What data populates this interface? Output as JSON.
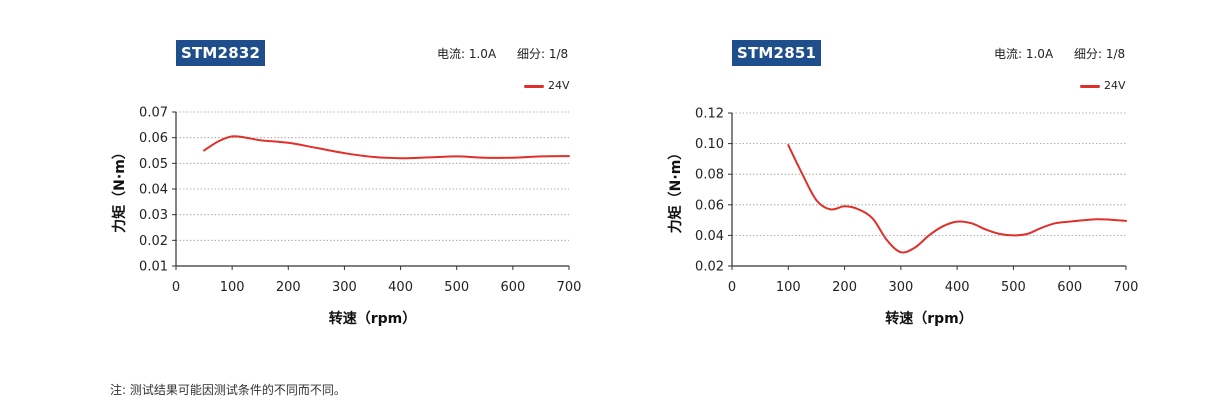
{
  "chart_data": [
    {
      "type": "line",
      "title": "STM2832",
      "spec": {
        "current": "电流: 1.0A",
        "microstep": "细分: 1/8"
      },
      "xlabel": "转速（rpm）",
      "ylabel": "力矩（N·m）",
      "xlim": [
        0,
        700
      ],
      "ylim": [
        0.01,
        0.07
      ],
      "xticks": [
        0,
        100,
        200,
        300,
        400,
        500,
        600,
        700
      ],
      "yticks": [
        "0.01",
        "0.02",
        "0.03",
        "0.04",
        "0.05",
        "0.06",
        "0.07"
      ],
      "grid": "horizontal dotted",
      "legend_position": "top-right",
      "series": [
        {
          "name": "24V",
          "color": "#e0302a",
          "x": [
            50,
            75,
            100,
            125,
            150,
            200,
            250,
            300,
            350,
            400,
            450,
            500,
            550,
            600,
            650,
            700
          ],
          "y": [
            0.055,
            0.0585,
            0.0605,
            0.06,
            0.059,
            0.058,
            0.056,
            0.054,
            0.0525,
            0.052,
            0.0523,
            0.0527,
            0.0522,
            0.0522,
            0.0527,
            0.0528
          ]
        }
      ]
    },
    {
      "type": "line",
      "title": "STM2851",
      "spec": {
        "current": "电流: 1.0A",
        "microstep": "细分: 1/8"
      },
      "xlabel": "转速（rpm）",
      "ylabel": "力矩（N·m）",
      "xlim": [
        0,
        700
      ],
      "ylim": [
        0.02,
        0.12
      ],
      "xticks": [
        0,
        100,
        200,
        300,
        400,
        500,
        600,
        700
      ],
      "yticks": [
        "0.02",
        "0.04",
        "0.06",
        "0.08",
        "0.10",
        "0.12"
      ],
      "grid": "horizontal dotted",
      "legend_position": "top-right",
      "series": [
        {
          "name": "24V",
          "color": "#e0302a",
          "x": [
            100,
            125,
            150,
            175,
            200,
            225,
            250,
            275,
            300,
            325,
            350,
            375,
            400,
            425,
            450,
            475,
            500,
            525,
            550,
            575,
            600,
            650,
            700
          ],
          "y": [
            0.099,
            0.08,
            0.063,
            0.057,
            0.059,
            0.057,
            0.051,
            0.037,
            0.029,
            0.032,
            0.04,
            0.046,
            0.049,
            0.048,
            0.044,
            0.041,
            0.04,
            0.041,
            0.045,
            0.048,
            0.049,
            0.0505,
            0.0495
          ]
        }
      ]
    }
  ],
  "footnote": "注: 测试结果可能因测试条件的不同而不同。"
}
